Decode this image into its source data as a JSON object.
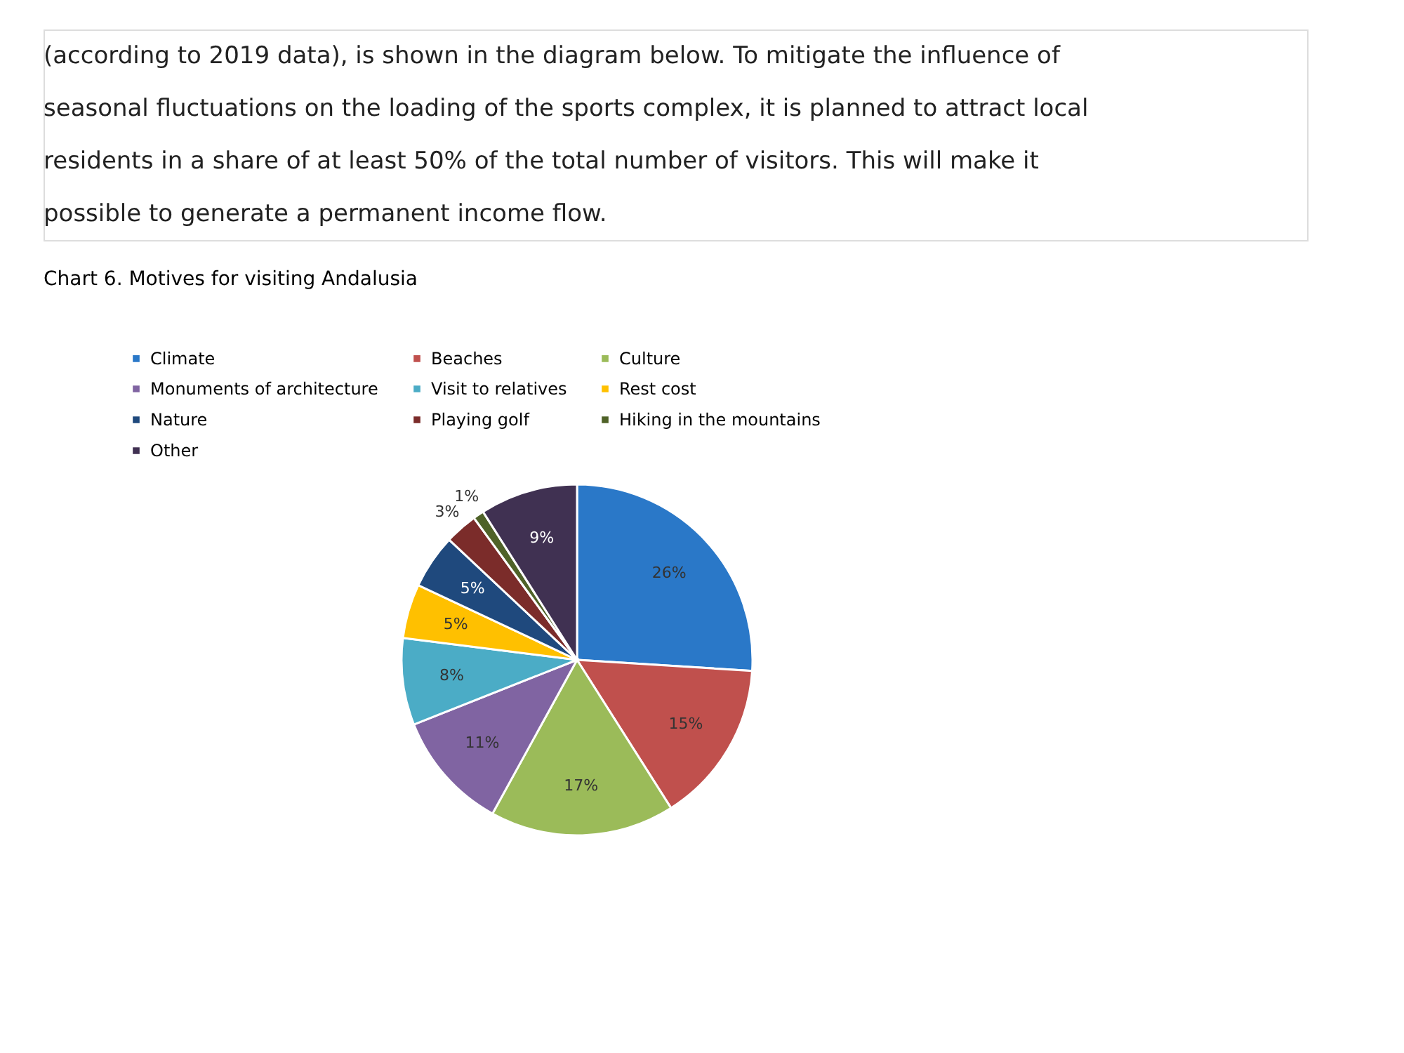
{
  "chart_data": {
    "type": "pie",
    "title": "Chart 6. Motives for visiting Andalusia",
    "annotations": [
      "(according to 2019 data), is shown in the diagram below. To mitigate the influence of",
      "seasonal fluctuations on the loading of the sports complex, it is planned to attract local",
      "residents in a share of at least 50% of the total number of visitors. This will make it",
      "possible to generate a permanent income flow."
    ],
    "categories": [
      "Climate",
      "Beaches",
      "Culture",
      "Monuments of architecture",
      "Visit to relatives",
      "Rest cost",
      "Nature",
      "Playing golf",
      "Hiking in the mountains",
      "Other"
    ],
    "values": [
      26,
      15,
      17,
      11,
      8,
      5,
      5,
      3,
      1,
      9
    ],
    "colors": [
      "#2a78c8",
      "#c0504d",
      "#9bbb59",
      "#8064a2",
      "#4bacc6",
      "#ffc000",
      "#1f497d",
      "#7b2c2a",
      "#4f6228",
      "#403152"
    ],
    "value_labels": [
      "26%",
      "15%",
      "17%",
      "11%",
      "8%",
      "5%",
      "5%",
      "3%",
      "1%",
      "9%"
    ],
    "legend": "top"
  }
}
